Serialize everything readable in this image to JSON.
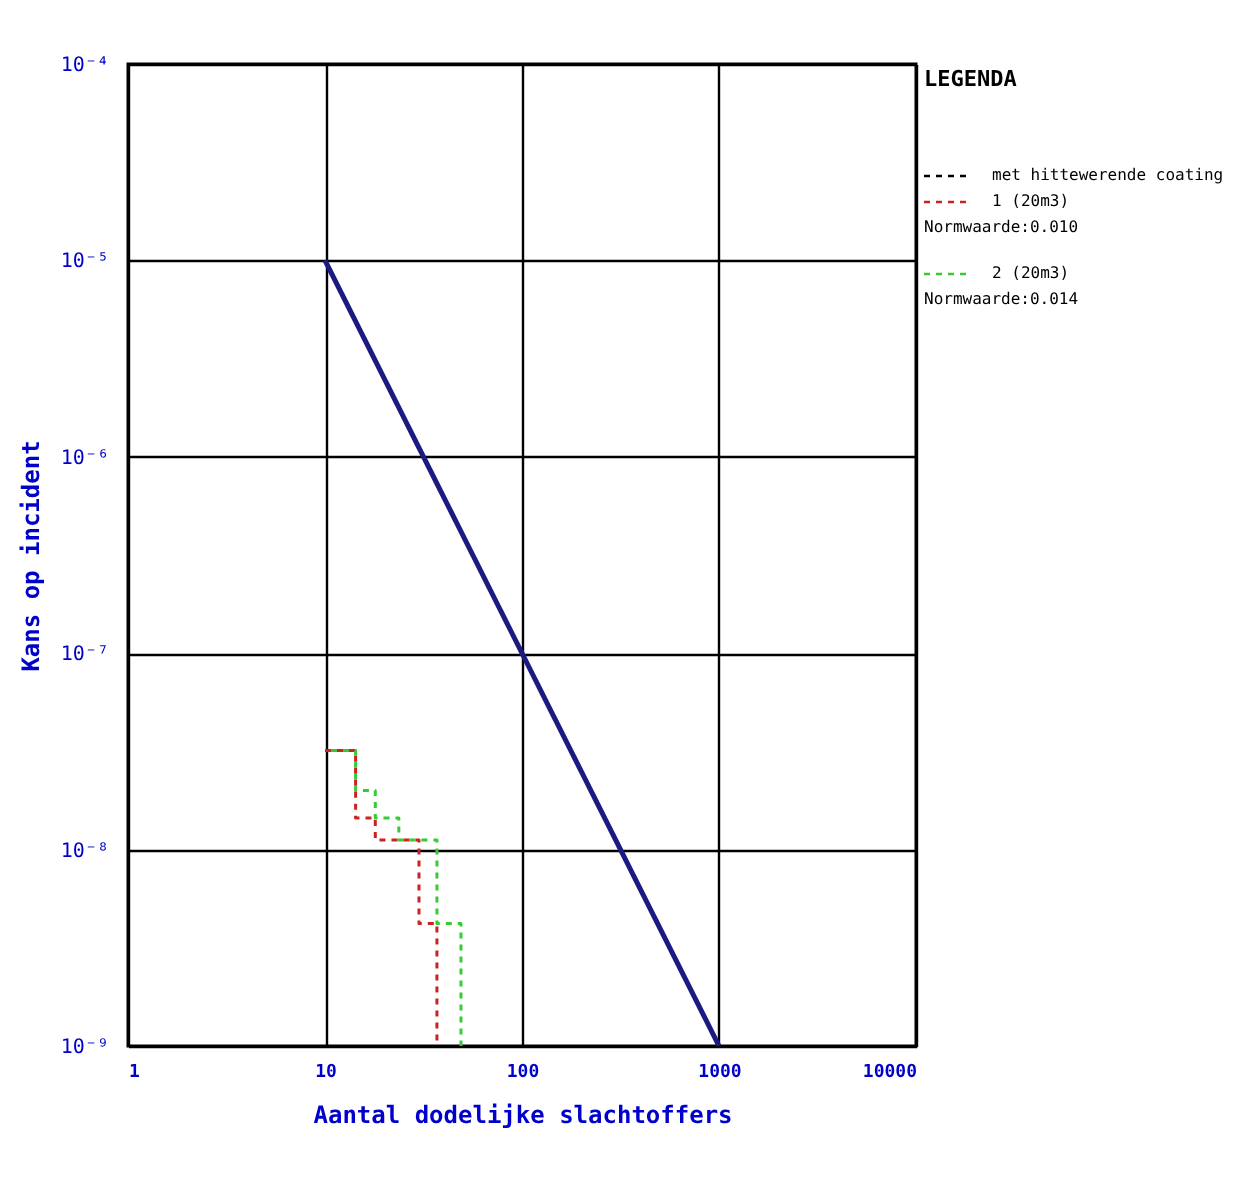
{
  "chart_data": {
    "type": "line",
    "xlabel": "Aantal dodelijke slachtoffers",
    "ylabel": "Kans op incident",
    "legend_title": "LEGENDA",
    "log": "xy",
    "xlim": [
      1,
      10000
    ],
    "xticks": [
      1,
      10,
      100,
      1000,
      10000
    ],
    "ylim": [
      1e-09,
      0.0001
    ],
    "yticks": [
      {
        "value": 1e-09,
        "label": "10⁻⁹"
      },
      {
        "value": 1e-08,
        "label": "10⁻⁸"
      },
      {
        "value": 1e-07,
        "label": "10⁻⁷"
      },
      {
        "value": 1e-06,
        "label": "10⁻⁶"
      },
      {
        "value": 1e-05,
        "label": "10⁻⁵"
      },
      {
        "value": 0.0001,
        "label": "10⁻⁴"
      }
    ],
    "grid": true,
    "legend": "top right",
    "series": [
      {
        "color": "#1a1a80",
        "line_style": "solid",
        "x": [
          10,
          1000
        ],
        "values": [
          1e-05,
          1e-09
        ]
      },
      {
        "name": "met hittewerende coating",
        "color": "#000000",
        "line_style": "dashed"
      },
      {
        "type": "step",
        "name": "1 (20m3)",
        "color": "#cc2222",
        "line_style": "dashed",
        "x": [
          10,
          14.3,
          18,
          30,
          37
        ],
        "values": [
          3.2e-08,
          1.45e-08,
          1.12e-08,
          4.2e-09,
          1e-09
        ]
      },
      {
        "type": "step",
        "name": "2 (20m3)",
        "color": "#33cc33",
        "line_style": "dashed",
        "x": [
          10,
          14.3,
          18,
          23.7,
          37,
          49
        ],
        "values": [
          3.2e-08,
          2e-08,
          1.45e-08,
          1.12e-08,
          4.2e-09,
          1e-09
        ]
      }
    ],
    "annotations": [
      "Normwaarde:0.010",
      "Normwaarde:0.014"
    ]
  }
}
